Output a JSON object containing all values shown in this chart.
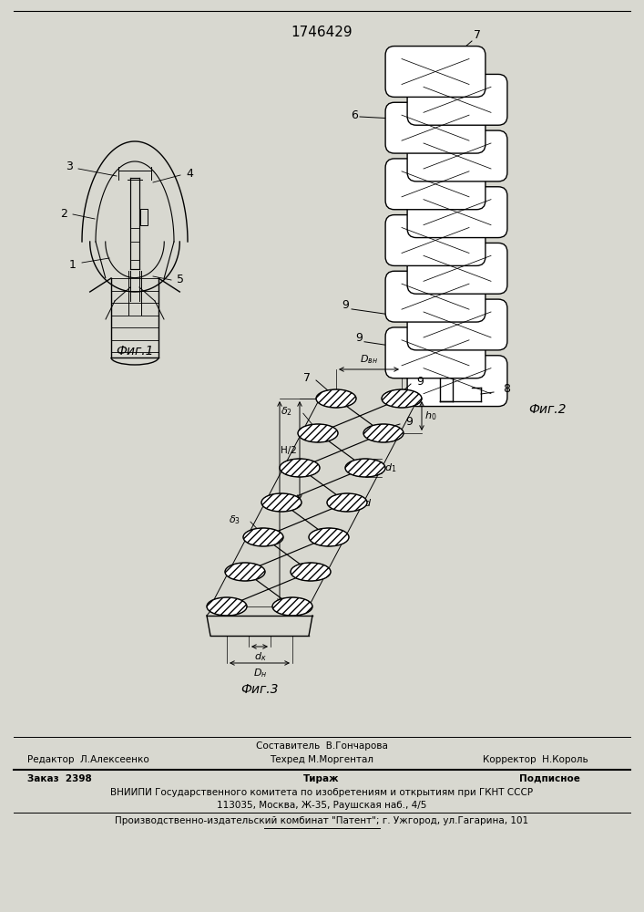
{
  "patent_number": "1746429",
  "bg_color": "#d8d8d0",
  "fig1_label": "Фиг.1",
  "fig2_label": "Фиг.2",
  "fig3_label": "Фиг.3",
  "lw": 1.0
}
